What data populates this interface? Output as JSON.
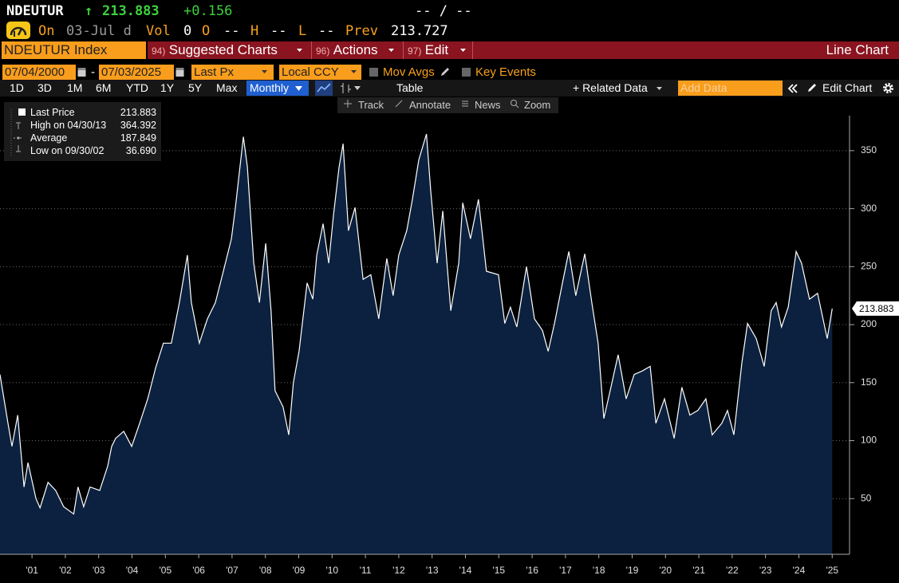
{
  "header": {
    "ticker": "NDEUTUR",
    "arrow": "↑",
    "last": "213.883",
    "change": "+0.156",
    "bid_ask": "-- / --"
  },
  "quote": {
    "on_label": "On",
    "date": "03-Jul d",
    "vol_label": "Vol",
    "vol": "0",
    "open_label": "O",
    "open": "--",
    "high_label": "H",
    "high": "--",
    "low_label": "L",
    "low": "--",
    "prev_label": "Prev",
    "prev": "213.727"
  },
  "menu": {
    "security": "NDEUTUR Index",
    "items": [
      {
        "num": "94)",
        "label": "Suggested Charts"
      },
      {
        "num": "96)",
        "label": "Actions"
      },
      {
        "num": "97)",
        "label": "Edit"
      }
    ],
    "title": "Line Chart"
  },
  "controls": {
    "start": "07/04/2000",
    "separator": "-",
    "end": "07/03/2025",
    "field": "Last Px",
    "currency": "Local CCY",
    "options": [
      "Mov Avgs",
      "Key Events"
    ]
  },
  "toolbar": {
    "periods": [
      "1D",
      "3D",
      "1M",
      "6M",
      "YTD",
      "1Y",
      "5Y",
      "Max"
    ],
    "frequency": "Monthly",
    "table": "Table",
    "related": "+ Related Data",
    "add_data": "Add Data",
    "edit_chart": "Edit Chart"
  },
  "chart_tools": [
    "Track",
    "Annotate",
    "News",
    "Zoom"
  ],
  "chart_data": {
    "type": "line",
    "series": [
      {
        "name": "Last Price",
        "color": "#ffffff",
        "fill_color": "#0b213f",
        "x": [
          2000.54,
          2000.78,
          2000.9,
          2001.07,
          2001.26,
          2001.38,
          2001.62,
          2001.74,
          2001.98,
          2002.21,
          2002.45,
          2002.75,
          2002.88,
          2003.05,
          2003.24,
          2003.53,
          2003.77,
          2003.89,
          2004.01,
          2004.25,
          2004.49,
          2004.73,
          2004.97,
          2005.21,
          2005.44,
          2005.68,
          2005.92,
          2006.16,
          2006.28,
          2006.52,
          2006.76,
          2007.0,
          2007.24,
          2007.48,
          2007.6,
          2007.84,
          2007.96,
          2008.15,
          2008.32,
          2008.51,
          2008.67,
          2008.79,
          2009.03,
          2009.2,
          2009.34,
          2009.51,
          2009.75,
          2009.92,
          2010.04,
          2010.23,
          2010.4,
          2010.54,
          2010.71,
          2010.83,
          2010.99,
          2011.19,
          2011.43,
          2011.66,
          2011.9,
          2012.14,
          2012.33,
          2012.5,
          2012.74,
          2012.91,
          2013.1,
          2013.33,
          2013.46,
          2013.65,
          2013.82,
          2014.06,
          2014.3,
          2014.42,
          2014.65,
          2014.89,
          2015.13,
          2015.49,
          2015.68,
          2015.85,
          2016.04,
          2016.33,
          2016.57,
          2016.81,
          2016.98,
          2017.17,
          2017.41,
          2017.6,
          2017.81,
          2018.08,
          2018.29,
          2018.48,
          2018.65,
          2018.84,
          2019.08,
          2019.32,
          2019.56,
          2019.8,
          2020.04,
          2020.21,
          2020.47,
          2020.76,
          2020.99,
          2021.23,
          2021.47,
          2021.71,
          2021.9,
          2022.19,
          2022.36,
          2022.55,
          2022.79,
          2022.96,
          2023.22,
          2023.46,
          2023.67,
          2023.82,
          2023.98,
          2024.18,
          2024.42,
          2024.58,
          2024.82,
          2025.06,
          2025.35,
          2025.5
        ],
        "values": [
          157,
          115,
          95,
          122,
          60,
          81,
          50,
          42,
          64,
          57,
          43,
          36.69,
          60,
          43,
          60,
          57,
          78,
          95,
          102,
          108,
          95,
          115,
          136,
          163,
          184,
          184,
          219,
          260,
          219,
          184,
          205,
          219,
          246,
          274,
          301,
          362,
          336,
          253,
          219,
          270,
          212,
          143,
          129,
          105,
          150,
          177,
          236,
          222,
          260,
          287,
          253,
          294,
          336,
          356,
          281,
          301,
          239,
          243,
          205,
          257,
          225,
          260,
          281,
          308,
          342,
          364.392,
          315,
          253,
          298,
          212,
          253,
          305,
          274,
          308,
          246,
          243,
          201,
          215,
          198,
          250,
          205,
          195,
          177,
          201,
          236,
          263,
          225,
          261,
          219,
          184,
          119,
          143,
          174,
          136,
          157,
          160,
          164,
          115,
          136,
          102,
          146,
          122,
          126,
          136,
          105,
          115,
          126,
          105,
          167,
          201,
          188,
          164,
          212,
          219,
          198,
          215,
          263,
          253,
          222,
          227,
          188,
          213.883
        ]
      }
    ],
    "stats": [
      {
        "label": "High on 04/30/13",
        "value": "364.392"
      },
      {
        "label": "Average",
        "value": "187.849"
      },
      {
        "label": "Low on 09/30/02",
        "value": "36.690"
      }
    ],
    "xlim": [
      2000.54,
      2026.02
    ],
    "ylim": [
      2,
      396
    ],
    "yticks": [
      50,
      100,
      150,
      200,
      250,
      300,
      350
    ],
    "xticks": [
      {
        "value": 2001.5,
        "label": "'01"
      },
      {
        "value": 2002.5,
        "label": "'02"
      },
      {
        "value": 2003.5,
        "label": "'03"
      },
      {
        "value": 2004.5,
        "label": "'04"
      },
      {
        "value": 2005.5,
        "label": "'05"
      },
      {
        "value": 2006.5,
        "label": "'06"
      },
      {
        "value": 2007.5,
        "label": "'07"
      },
      {
        "value": 2008.5,
        "label": "'08"
      },
      {
        "value": 2009.5,
        "label": "'09"
      },
      {
        "value": 2010.5,
        "label": "'10"
      },
      {
        "value": 2011.5,
        "label": "'11"
      },
      {
        "value": 2012.5,
        "label": "'12"
      },
      {
        "value": 2013.5,
        "label": "'13"
      },
      {
        "value": 2014.5,
        "label": "'14"
      },
      {
        "value": 2015.5,
        "label": "'15"
      },
      {
        "value": 2016.5,
        "label": "'16"
      },
      {
        "value": 2017.5,
        "label": "'17"
      },
      {
        "value": 2018.5,
        "label": "'18"
      },
      {
        "value": 2019.5,
        "label": "'19"
      },
      {
        "value": 2020.5,
        "label": "'20"
      },
      {
        "value": 2021.5,
        "label": "'21"
      },
      {
        "value": 2022.5,
        "label": "'22"
      },
      {
        "value": 2023.5,
        "label": "'23"
      },
      {
        "value": 2024.5,
        "label": "'24"
      },
      {
        "value": 2025.5,
        "label": "'25"
      }
    ],
    "grid": true
  }
}
